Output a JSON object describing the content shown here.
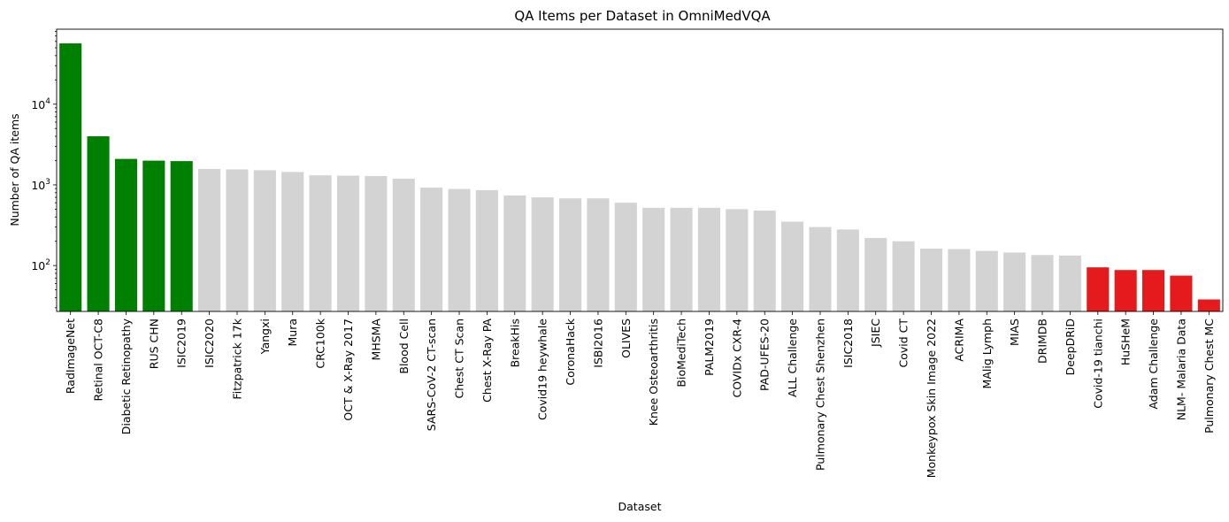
{
  "chart_data": {
    "type": "bar",
    "title": "QA Items per Dataset in OmniMedVQA",
    "xlabel": "Dataset",
    "ylabel": "Number of QA items",
    "yscale": "log",
    "ylim": [
      27,
      85000
    ],
    "y_ticks": [
      {
        "value": 100,
        "base": "10",
        "exp": "2"
      },
      {
        "value": 1000,
        "base": "10",
        "exp": "3"
      },
      {
        "value": 10000,
        "base": "10",
        "exp": "4"
      }
    ],
    "grid": false,
    "legend": "none",
    "colors": {
      "top": "#008000",
      "middle": "#d3d3d3",
      "bottom": "#e41a1c"
    },
    "categories": [
      "RadImageNet",
      "Retinal OCT-C8",
      "Diabetic Retinopathy",
      "RUS CHN",
      "ISIC2019",
      "ISIC2020",
      "Fitzpatrick 17k",
      "Yangxi",
      "Mura",
      "CRC100k",
      "OCT & X-Ray 2017",
      "MHSMA",
      "Blood Cell",
      "SARS-CoV-2 CT-scan",
      "Chest CT Scan",
      "Chest X-Ray PA",
      "BreakHis",
      "Covid19 heywhale",
      "CoronaHack",
      "ISBI2016",
      "OLIVES",
      "Knee Osteoarthritis",
      "BioMediTech",
      "PALM2019",
      "COVIDx CXR-4",
      "PAD-UFES-20",
      "ALL Challenge",
      "Pulmonary Chest Shenzhen",
      "ISIC2018",
      "JSIEC",
      "Covid CT",
      "Monkeypox Skin Image 2022",
      "ACRIMA",
      "MAlig Lymph",
      "MIAS",
      "DRIMDB",
      "DeepDRiD",
      "Covid-19 tianchi",
      "HuSHeM",
      "Adam Challenge",
      "NLM- Malaria Data",
      "Pulmonary Chest MC"
    ],
    "values": [
      56697,
      4000,
      2098,
      1996,
      1970,
      1573,
      1555,
      1520,
      1445,
      1313,
      1300,
      1287,
      1192,
      924,
      890,
      860,
      740,
      700,
      680,
      680,
      600,
      520,
      520,
      520,
      500,
      480,
      350,
      300,
      280,
      220,
      200,
      162,
      160,
      152,
      145,
      135,
      133,
      95,
      88,
      88,
      75,
      38
    ],
    "bar_groups": [
      "top",
      "top",
      "top",
      "top",
      "top",
      "middle",
      "middle",
      "middle",
      "middle",
      "middle",
      "middle",
      "middle",
      "middle",
      "middle",
      "middle",
      "middle",
      "middle",
      "middle",
      "middle",
      "middle",
      "middle",
      "middle",
      "middle",
      "middle",
      "middle",
      "middle",
      "middle",
      "middle",
      "middle",
      "middle",
      "middle",
      "middle",
      "middle",
      "middle",
      "middle",
      "middle",
      "middle",
      "bottom",
      "bottom",
      "bottom",
      "bottom",
      "bottom"
    ]
  }
}
